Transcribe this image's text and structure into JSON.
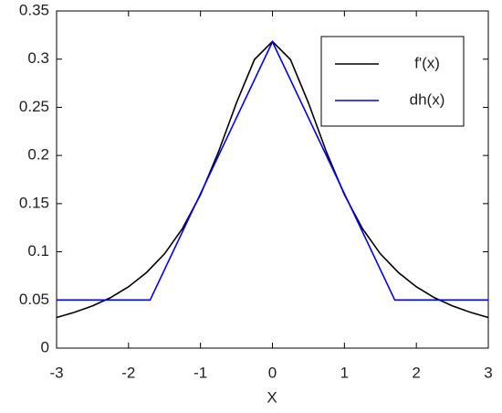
{
  "chart_data": {
    "type": "line",
    "xlabel": "X",
    "xlim": [
      -3,
      3
    ],
    "xticks": [
      -3,
      -2,
      -1,
      0,
      1,
      2,
      3
    ],
    "ylim": [
      0,
      0.35
    ],
    "yticks": [
      0,
      0.05,
      0.1,
      0.15,
      0.2,
      0.25,
      0.3,
      0.35
    ],
    "grid": false,
    "legend": "upper right",
    "series": [
      {
        "name": "f'(x)",
        "color": "#000000",
        "x": [
          -3,
          -2.75,
          -2.5,
          -2.25,
          -2,
          -1.75,
          -1.5,
          -1.25,
          -1,
          -0.75,
          -0.5,
          -0.25,
          0,
          0.25,
          0.5,
          0.75,
          1,
          1.25,
          1.5,
          1.75,
          2,
          2.25,
          2.5,
          2.75,
          3
        ],
        "values": [
          0.0318,
          0.0372,
          0.0439,
          0.0524,
          0.0637,
          0.0785,
          0.0979,
          0.1242,
          0.1592,
          0.2037,
          0.2546,
          0.2996,
          0.3183,
          0.2996,
          0.2546,
          0.2037,
          0.1592,
          0.1242,
          0.0979,
          0.0785,
          0.0637,
          0.0524,
          0.0439,
          0.0372,
          0.0318
        ]
      },
      {
        "name": "dh(x)",
        "color": "#0000ff",
        "x": [
          -3,
          -1.7,
          0,
          1.7,
          3
        ],
        "values": [
          0.05,
          0.05,
          0.318,
          0.05,
          0.05
        ]
      }
    ]
  }
}
